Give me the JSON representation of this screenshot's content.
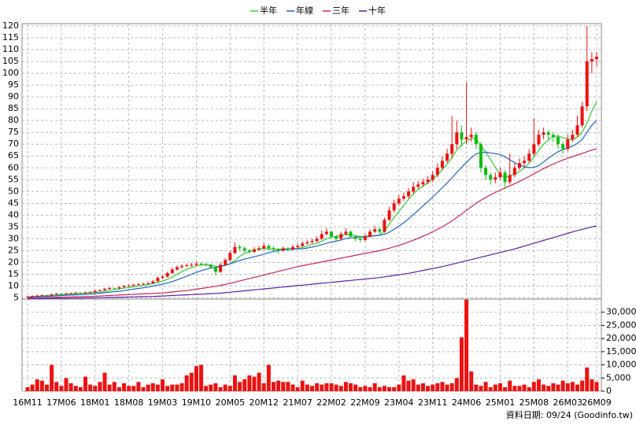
{
  "chart_data": {
    "type": "candlestick",
    "footer": "資料日期: 09/24  (Goodinfo.tw)",
    "categories": [
      "16M11",
      null,
      null,
      null,
      null,
      null,
      null,
      "17M06",
      null,
      null,
      null,
      null,
      null,
      null,
      "18M01",
      null,
      null,
      null,
      null,
      null,
      null,
      "18M08",
      null,
      null,
      null,
      null,
      null,
      null,
      "19M03",
      null,
      null,
      null,
      null,
      null,
      null,
      "19M10",
      null,
      null,
      null,
      null,
      null,
      null,
      "20M05",
      null,
      null,
      null,
      null,
      null,
      null,
      "20M12",
      null,
      null,
      null,
      null,
      null,
      null,
      "21M07",
      null,
      null,
      null,
      null,
      null,
      null,
      "22M02",
      null,
      null,
      null,
      null,
      null,
      null,
      "22M09",
      null,
      null,
      null,
      null,
      null,
      null,
      "23M04",
      null,
      null,
      null,
      null,
      null,
      null,
      "23M11",
      null,
      null,
      null,
      null,
      null,
      null,
      "24M06",
      null,
      null,
      null,
      null,
      null,
      null,
      "25M01",
      null,
      null,
      null,
      null,
      null,
      null,
      "25M08",
      null,
      null,
      null,
      null,
      null,
      null,
      "26M03",
      null,
      null,
      null,
      null,
      null,
      "26M09"
    ],
    "up_color": "#ee1111",
    "down_color": "#11bb11",
    "flat_color": "#000000",
    "ohlc": [
      [
        5.3,
        5.7,
        5.1,
        5.5
      ],
      [
        5.5,
        6,
        5.3,
        5.8
      ],
      [
        5.8,
        6.2,
        5.6,
        6
      ],
      [
        6,
        6.4,
        5.8,
        6.2
      ],
      [
        6.2,
        6.4,
        5.9,
        6.1
      ],
      [
        6.1,
        6.8,
        5.9,
        6.5
      ],
      [
        6.5,
        7.1,
        6.3,
        6.8
      ],
      [
        6.8,
        6.9,
        6.4,
        6.6
      ],
      [
        6.6,
        7.2,
        6.4,
        6.9
      ],
      [
        6.9,
        7.3,
        6.7,
        7
      ],
      [
        7,
        7.5,
        6.8,
        7.2
      ],
      [
        7.2,
        7.4,
        6.8,
        7
      ],
      [
        7,
        7.6,
        6.8,
        7.3
      ],
      [
        7.3,
        7.8,
        7.1,
        7.5
      ],
      [
        7.5,
        8.3,
        7.3,
        8
      ],
      [
        8,
        8.6,
        7.8,
        8.3
      ],
      [
        8.3,
        9.2,
        8,
        8.8
      ],
      [
        8.8,
        9.6,
        8.5,
        9.2
      ],
      [
        9.2,
        9.4,
        8.7,
        9
      ],
      [
        9,
        9.9,
        8.8,
        9.5
      ],
      [
        9.5,
        10.4,
        9.3,
        10
      ],
      [
        10,
        10.6,
        9.7,
        10.2
      ],
      [
        10.2,
        10.9,
        9.9,
        10.5
      ],
      [
        10.5,
        11.2,
        10.2,
        10.8
      ],
      [
        10.8,
        11.4,
        10.5,
        11
      ],
      [
        11,
        11.7,
        10.7,
        11.2
      ],
      [
        11.2,
        12.5,
        10.9,
        12
      ],
      [
        12,
        14,
        11.7,
        13.5
      ],
      [
        13.5,
        14.6,
        13,
        14
      ],
      [
        14,
        16.1,
        13.6,
        15.5
      ],
      [
        15.5,
        17.7,
        15,
        17
      ],
      [
        17,
        18.7,
        16.5,
        18
      ],
      [
        18,
        19.2,
        17.5,
        18.5
      ],
      [
        18.5,
        19.5,
        18,
        18.8
      ],
      [
        18.8,
        19.8,
        18.2,
        19
      ],
      [
        19,
        20.2,
        18.5,
        19.5
      ],
      [
        19.5,
        20,
        18.6,
        19.2
      ],
      [
        19.2,
        19.8,
        18.4,
        19
      ],
      [
        19,
        19.5,
        17.3,
        18
      ],
      [
        18,
        18.5,
        14.5,
        16
      ],
      [
        16,
        19.8,
        15.5,
        19
      ],
      [
        19,
        21.8,
        18.5,
        21
      ],
      [
        21,
        25,
        20.5,
        24
      ],
      [
        24,
        28.5,
        23.5,
        26.5
      ],
      [
        26.5,
        27.5,
        25,
        26
      ],
      [
        26,
        26.8,
        24.2,
        25
      ],
      [
        25,
        25.8,
        23.8,
        24.5
      ],
      [
        24.5,
        26.5,
        24,
        25.5
      ],
      [
        25.5,
        27,
        24.8,
        26
      ],
      [
        26,
        28.2,
        25.5,
        27
      ],
      [
        27,
        27.8,
        25.2,
        26
      ],
      [
        26,
        26.8,
        24.8,
        25.5
      ],
      [
        25.5,
        26,
        23.5,
        25
      ],
      [
        25,
        26.8,
        24.5,
        26
      ],
      [
        26,
        26.5,
        24.8,
        25.5
      ],
      [
        25.5,
        27.5,
        25,
        26.5
      ],
      [
        26.5,
        28,
        26,
        27
      ],
      [
        27,
        29,
        26.5,
        28
      ],
      [
        28,
        29.5,
        27.5,
        28.5
      ],
      [
        28.5,
        30,
        28,
        29
      ],
      [
        29,
        31,
        28.5,
        30
      ],
      [
        30,
        33.5,
        29.5,
        32
      ],
      [
        32,
        34.5,
        31.5,
        33
      ],
      [
        33,
        33.5,
        30,
        31
      ],
      [
        31,
        31.5,
        29,
        30
      ],
      [
        30,
        33,
        29.5,
        32
      ],
      [
        32,
        34.5,
        31.5,
        33
      ],
      [
        33,
        33.5,
        30.5,
        31
      ],
      [
        31,
        31.5,
        29,
        30
      ],
      [
        30,
        30.8,
        28.5,
        29.5
      ],
      [
        29.5,
        32,
        29,
        31
      ],
      [
        31,
        34,
        30.5,
        33
      ],
      [
        33,
        35.5,
        32.5,
        34
      ],
      [
        34,
        35,
        32,
        33
      ],
      [
        33,
        39,
        32.5,
        38
      ],
      [
        38,
        43.5,
        37.5,
        42
      ],
      [
        42,
        46.5,
        41,
        45
      ],
      [
        45,
        48.5,
        44,
        47
      ],
      [
        47,
        49.5,
        46,
        48
      ],
      [
        48,
        51.5,
        47,
        50
      ],
      [
        50,
        54,
        49,
        52
      ],
      [
        52,
        54.5,
        51,
        53
      ],
      [
        53,
        55.5,
        52,
        54
      ],
      [
        54,
        56.5,
        53,
        55
      ],
      [
        55,
        58.5,
        54,
        57
      ],
      [
        57,
        62,
        56,
        60
      ],
      [
        60,
        65,
        59,
        63
      ],
      [
        63,
        68,
        62,
        66
      ],
      [
        66,
        82,
        64,
        70
      ],
      [
        70,
        80,
        68,
        75
      ],
      [
        75,
        78,
        69,
        72
      ],
      [
        72,
        96,
        70,
        73
      ],
      [
        73,
        77,
        71,
        74
      ],
      [
        74,
        75,
        68,
        70
      ],
      [
        70,
        71,
        58,
        60
      ],
      [
        60,
        61,
        55,
        57
      ],
      [
        57,
        58,
        53,
        55
      ],
      [
        55,
        58,
        53.5,
        56
      ],
      [
        56,
        60,
        55,
        58
      ],
      [
        58,
        59,
        51,
        54
      ],
      [
        54,
        66,
        53,
        57
      ],
      [
        57,
        62,
        56,
        60
      ],
      [
        60,
        64,
        59,
        62
      ],
      [
        62,
        65,
        60,
        63
      ],
      [
        63,
        68,
        62,
        66
      ],
      [
        66,
        81,
        65,
        70
      ],
      [
        70,
        76,
        69,
        74
      ],
      [
        74,
        77,
        72,
        75
      ],
      [
        75,
        76,
        72,
        74
      ],
      [
        74,
        75,
        71,
        73
      ],
      [
        73,
        74,
        68,
        70
      ],
      [
        70,
        71,
        66,
        68
      ],
      [
        68,
        74,
        67,
        72
      ],
      [
        72,
        76,
        71,
        74
      ],
      [
        74,
        82,
        73,
        78
      ],
      [
        78,
        88,
        77,
        86
      ],
      [
        86,
        120,
        84,
        105
      ],
      [
        105,
        109,
        100,
        106
      ],
      [
        106,
        109,
        103,
        107
      ]
    ],
    "volume": {
      "color": "#ee1111",
      "values": [
        1500,
        2500,
        4500,
        4000,
        2500,
        10000,
        3500,
        2000,
        5000,
        3000,
        2000,
        1500,
        5500,
        2500,
        2000,
        3500,
        7000,
        2500,
        3500,
        1500,
        3000,
        2000,
        2000,
        3500,
        1500,
        2500,
        3000,
        2500,
        4500,
        2000,
        2500,
        2500,
        3000,
        6000,
        7000,
        9500,
        10000,
        2000,
        2500,
        3000,
        1500,
        2500,
        2000,
        6000,
        3500,
        4500,
        6000,
        5500,
        7000,
        3000,
        10000,
        3500,
        4000,
        3500,
        3500,
        2500,
        1500,
        4000,
        2500,
        2000,
        3000,
        2500,
        3000,
        3000,
        2500,
        2000,
        3500,
        3000,
        2500,
        1500,
        2000,
        1500,
        3000,
        1500,
        2000,
        1500,
        1500,
        2500,
        6000,
        4000,
        4500,
        2500,
        3000,
        2000,
        2500,
        3000,
        3500,
        2500,
        3000,
        5000,
        20500,
        34800,
        7500,
        2500,
        2000,
        3500,
        1500,
        2500,
        3000,
        1500,
        4000,
        2000,
        2000,
        2500,
        1500,
        3500,
        4500,
        2500,
        2000,
        3000,
        2500,
        4000,
        3000,
        3500,
        2500,
        4000,
        9000,
        4500,
        3500
      ],
      "ylim": [
        0,
        35000
      ],
      "yticks": [
        0,
        {
          "value": 5000,
          "label": "5,000"
        },
        {
          "value": 10000,
          "label": "10,000"
        },
        {
          "value": 15000,
          "label": "15,000"
        },
        {
          "value": 20000,
          "label": "20,000"
        },
        {
          "value": 25000,
          "label": "25,000"
        },
        {
          "value": 30000,
          "label": "30,000"
        }
      ]
    },
    "series": [
      {
        "name": "半年",
        "color": "#33cc33",
        "values": [
          5.4,
          5.5,
          5.6,
          5.8,
          5.9,
          6,
          6.2,
          6.4,
          6.5,
          6.6,
          6.8,
          6.9,
          7,
          7.1,
          7.3,
          7.5,
          7.8,
          8.1,
          8.4,
          8.8,
          9.1,
          9.4,
          9.7,
          10,
          10.3,
          10.6,
          11,
          11.5,
          12.1,
          12.9,
          13.8,
          15,
          16.1,
          17,
          17.8,
          18.5,
          18.9,
          19,
          18.9,
          18.3,
          18.4,
          18.7,
          19.5,
          20.8,
          22.6,
          23.8,
          24.5,
          25.3,
          25.6,
          25.8,
          25.7,
          25.6,
          25.6,
          25.7,
          25.7,
          25.8,
          25.9,
          26.4,
          26.9,
          27.6,
          28.1,
          29,
          30,
          30.7,
          31,
          31.3,
          31.8,
          31.7,
          31.3,
          30.9,
          31.1,
          31.3,
          31.3,
          31.6,
          33.2,
          36.2,
          39,
          41.6,
          44,
          46.7,
          48.9,
          50.8,
          52.3,
          53.7,
          55.2,
          57,
          59.2,
          61.6,
          64.2,
          67.5,
          69.8,
          71.2,
          72.5,
          72.5,
          69.3,
          66.7,
          63.5,
          60.3,
          57,
          56,
          56.5,
          57.3,
          58.5,
          60,
          62,
          64.5,
          67.5,
          70,
          71.8,
          73.3,
          73.4,
          72.8,
          72.2,
          72,
          73,
          75,
          79,
          84,
          88
        ]
      },
      {
        "name": "年線",
        "color": "#1e64c8",
        "values": [
          5.3,
          5.4,
          5.5,
          5.6,
          5.7,
          5.8,
          5.9,
          6,
          6.1,
          6.2,
          6.3,
          6.4,
          6.5,
          6.6,
          6.8,
          7,
          7.2,
          7.4,
          7.6,
          7.8,
          8.1,
          8.4,
          8.7,
          9,
          9.3,
          9.6,
          10,
          10.4,
          10.8,
          11.3,
          11.9,
          12.6,
          13.4,
          14.2,
          15,
          15.8,
          16.5,
          17.1,
          17.6,
          17.9,
          18.3,
          18.8,
          19.4,
          20.1,
          20.8,
          21.4,
          21.9,
          22.4,
          22.9,
          23.5,
          24.1,
          24.6,
          25,
          25.3,
          25.5,
          25.6,
          25.7,
          25.8,
          26.1,
          26.5,
          26.9,
          27.5,
          28.1,
          28.6,
          29,
          29.5,
          30.1,
          30.4,
          30.6,
          30.7,
          30.8,
          31,
          31.3,
          31.5,
          31.9,
          32.8,
          34,
          35.4,
          36.8,
          38.4,
          40.2,
          42,
          43.9,
          45.7,
          47.6,
          49.6,
          51.6,
          53.6,
          55.8,
          58.1,
          60.2,
          62.3,
          64.3,
          65.9,
          66.5,
          66.6,
          66.3,
          66,
          65.6,
          64.6,
          63.4,
          62.2,
          61.2,
          60.4,
          60.1,
          60.2,
          61,
          62.5,
          64.1,
          65.5,
          66.8,
          67.7,
          68.4,
          69.2,
          70.3,
          72,
          75,
          78,
          80
        ]
      },
      {
        "name": "三年",
        "color": "#cc2255",
        "values": [
          5,
          5,
          5.1,
          5.1,
          5.2,
          5.2,
          5.3,
          5.3,
          5.4,
          5.4,
          5.5,
          5.5,
          5.6,
          5.6,
          5.7,
          5.8,
          5.9,
          6,
          6.1,
          6.2,
          6.3,
          6.4,
          6.5,
          6.6,
          6.7,
          6.8,
          6.9,
          7,
          7.1,
          7.3,
          7.5,
          7.7,
          7.9,
          8.1,
          8.4,
          8.7,
          9,
          9.3,
          9.6,
          9.9,
          10.3,
          10.7,
          11.2,
          11.7,
          12.2,
          12.7,
          13.2,
          13.7,
          14.2,
          14.7,
          15.2,
          15.7,
          16.2,
          16.7,
          17.2,
          17.7,
          18.2,
          18.6,
          19,
          19.4,
          19.8,
          20.2,
          20.6,
          21,
          21.4,
          21.8,
          22.2,
          22.6,
          23,
          23.4,
          23.8,
          24.2,
          24.6,
          25,
          25.5,
          26,
          26.6,
          27.2,
          27.9,
          28.6,
          29.4,
          30.2,
          31.1,
          32,
          33,
          34,
          35.1,
          36.3,
          37.6,
          39,
          40.5,
          42,
          43.5,
          45,
          46.3,
          47.5,
          48.6,
          49.6,
          50.6,
          51.5,
          52.4,
          53.3,
          54.3,
          55.3,
          56.4,
          57.5,
          58.6,
          59.7,
          60.7,
          61.6,
          62.5,
          63.3,
          64,
          64.7,
          65.4,
          66.1,
          66.8,
          67.5,
          68
        ]
      },
      {
        "name": "十年",
        "color": "#5522aa",
        "values": [
          4.6,
          4.6,
          4.6,
          4.7,
          4.7,
          4.7,
          4.8,
          4.8,
          4.8,
          4.9,
          4.9,
          4.9,
          5,
          5,
          5,
          5.1,
          5.1,
          5.2,
          5.2,
          5.3,
          5.3,
          5.4,
          5.4,
          5.5,
          5.5,
          5.6,
          5.6,
          5.7,
          5.8,
          5.9,
          6,
          6.1,
          6.2,
          6.3,
          6.4,
          6.5,
          6.6,
          6.7,
          6.8,
          6.9,
          7,
          7.2,
          7.4,
          7.6,
          7.8,
          8,
          8.2,
          8.4,
          8.6,
          8.8,
          9,
          9.2,
          9.4,
          9.6,
          9.8,
          10,
          10.2,
          10.4,
          10.6,
          10.8,
          11,
          11.2,
          11.4,
          11.6,
          11.8,
          12,
          12.2,
          12.4,
          12.6,
          12.8,
          13,
          13.2,
          13.4,
          13.6,
          13.9,
          14.2,
          14.5,
          14.8,
          15.1,
          15.4,
          15.8,
          16.2,
          16.6,
          17,
          17.4,
          17.8,
          18.2,
          18.7,
          19.2,
          19.7,
          20.2,
          20.7,
          21.2,
          21.7,
          22.2,
          22.7,
          23.2,
          23.7,
          24.2,
          24.7,
          25.2,
          25.7,
          26.3,
          26.9,
          27.5,
          28.1,
          28.7,
          29.3,
          29.9,
          30.5,
          31.1,
          31.7,
          32.3,
          32.9,
          33.5,
          34,
          34.5,
          35,
          35.5
        ]
      }
    ],
    "ylim": [
      4.5,
      121
    ],
    "yticks": [
      5,
      10,
      15,
      20,
      25,
      30,
      35,
      40,
      45,
      50,
      55,
      60,
      65,
      70,
      75,
      80,
      85,
      90,
      95,
      100,
      105,
      110,
      115,
      120
    ],
    "grid": true
  }
}
